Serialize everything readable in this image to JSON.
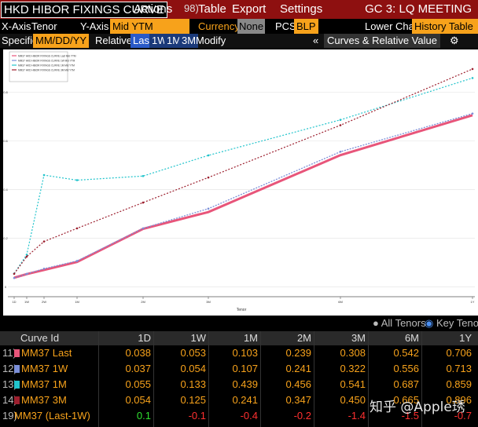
{
  "toolbar": {
    "title": "HKD HIBOR FIXINGS CURVE",
    "menus": [
      "Actions",
      "Table",
      "Export",
      "Settings"
    ],
    "table_prefix": "98)",
    "right": "GC 3: LQ MEETING"
  },
  "settings": {
    "x_axis_label": "X-Axis",
    "x_axis": "Tenor",
    "y_axis_label": "Y-Axis",
    "y_axis": "Mid YTM",
    "currency_label": "Currency",
    "currency": "None",
    "pcs_label": "PCS",
    "pcs": "BLP",
    "lower_chart_label": "Lower Chart",
    "lower_chart": "History Table"
  },
  "dates": {
    "specific": "Specific",
    "format": "MM/DD/YY",
    "relative": "Relative",
    "options": [
      "Last",
      "1W",
      "1M",
      "3M"
    ],
    "modify": "Modify",
    "collapse": "«",
    "panel": "Curves & Relative Value",
    "gear": "⚙"
  },
  "chart_data": {
    "type": "line",
    "xlabel": "Tenor",
    "categories": [
      "1D",
      "1W",
      "2W",
      "1M",
      "2M",
      "3M",
      "6M",
      "1Y"
    ],
    "series": [
      {
        "name": "MM37 HKD HIBOR FIXINGS CURVE Last Mid YTM",
        "color": "#e8557a",
        "values": [
          0.038,
          0.053,
          0.07,
          0.103,
          0.239,
          0.308,
          0.542,
          0.706
        ]
      },
      {
        "name": "MM37 HKD HIBOR FIXINGS CURVE 1W Mid YTM",
        "color": "#7b8fd8",
        "values": [
          0.037,
          0.054,
          0.075,
          0.107,
          0.241,
          0.322,
          0.556,
          0.713
        ]
      },
      {
        "name": "MM37 HKD HIBOR FIXINGS CURVE 1M Mid YTM",
        "color": "#22c4cc",
        "values": [
          0.055,
          0.133,
          0.46,
          0.439,
          0.456,
          0.541,
          0.687,
          0.859
        ]
      },
      {
        "name": "MM37 HKD HIBOR FIXINGS CURVE 3M Mid YTM",
        "color": "#9c1f2e",
        "values": [
          0.054,
          0.125,
          0.187,
          0.241,
          0.347,
          0.45,
          0.665,
          0.896
        ]
      }
    ],
    "ylim": [
      -0.04,
      0.97
    ],
    "yticks": [
      0,
      0.2,
      0.4,
      0.6,
      0.8
    ],
    "grid": true
  },
  "table_toggles": [
    "All Tenors",
    "Key Tenors"
  ],
  "table": {
    "header": [
      "Curve Id",
      "1D",
      "1W",
      "1M",
      "2M",
      "3M",
      "6M",
      "1Y"
    ],
    "rows": [
      {
        "id": "11)",
        "name": "MM37 Last",
        "cells": [
          "0.038",
          "0.053",
          "0.103",
          "0.239",
          "0.308",
          "0.542",
          "0.706"
        ]
      },
      {
        "id": "12)",
        "name": "MM37 1W",
        "cells": [
          "0.037",
          "0.054",
          "0.107",
          "0.241",
          "0.322",
          "0.556",
          "0.713"
        ]
      },
      {
        "id": "13)",
        "name": "MM37 1M",
        "cells": [
          "0.055",
          "0.133",
          "0.439",
          "0.456",
          "0.541",
          "0.687",
          "0.859"
        ]
      },
      {
        "id": "14)",
        "name": "MM37 3M",
        "cells": [
          "0.054",
          "0.125",
          "0.241",
          "0.347",
          "0.450",
          "0.665",
          "0.896"
        ]
      },
      {
        "id": "19)",
        "name": "MM37 (Last-1W)",
        "cells": [
          "0.1",
          "-0.1",
          "-0.4",
          "-0.2",
          "-1.4",
          "-1.5",
          "-0.7"
        ]
      }
    ]
  },
  "watermark": "知乎 @Apple琇"
}
